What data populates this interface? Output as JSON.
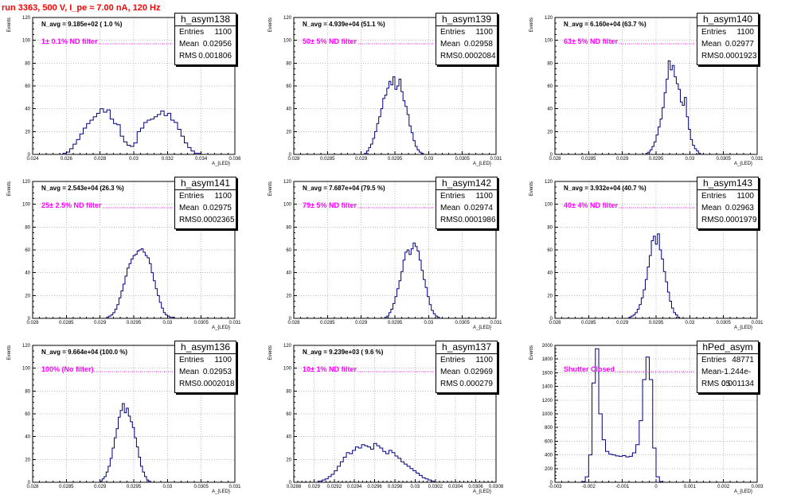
{
  "run_title": "run 3363,   500 V, I_pe ≈ 7.00 nA, 120 Hz",
  "stat_labels": {
    "entries": "Entries",
    "mean": "Mean",
    "rms": "RMS"
  },
  "y_axis_label": "Events",
  "x_axis_label": "A_{LED}",
  "chart_data": [
    {
      "type": "histogram",
      "title": "h_asym138",
      "navg": "N_avg = 9.185e+02 ( 1.0 %)",
      "filter_label": "1± 0.1% ND filter",
      "stats": {
        "entries": "1100",
        "mean": "0.02956",
        "rms": "0.001806"
      },
      "xlim": [
        0.024,
        0.036
      ],
      "ylim": [
        0,
        120
      ],
      "xticks": [
        0.024,
        0.026,
        0.028,
        0.03,
        0.032,
        0.034,
        0.036
      ],
      "xtick_labels": [
        "0.024",
        "0.026",
        "0.028",
        "0.03",
        "0.032",
        "0.034",
        "0.036"
      ],
      "yticks": [
        0,
        20,
        40,
        60,
        80,
        100,
        120
      ],
      "bin_start": 0.0258,
      "bin_width": 0.0002,
      "values": [
        1,
        2,
        5,
        9,
        13,
        18,
        23,
        27,
        30,
        33,
        36,
        40,
        37,
        39,
        31,
        27,
        26,
        16,
        11,
        8,
        7,
        10,
        20,
        23,
        28,
        30,
        31,
        33,
        35,
        38,
        34,
        36,
        30,
        28,
        22,
        16,
        10,
        6,
        3,
        1,
        1
      ]
    },
    {
      "type": "histogram",
      "title": "h_asym139",
      "navg": "N_avg = 4.939e+04 (51.1 %)",
      "filter_label": "50± 5% ND filter",
      "stats": {
        "entries": "1100",
        "mean": "0.02958",
        "rms": "0.0002084"
      },
      "xlim": [
        0.028,
        0.031
      ],
      "ylim": [
        0,
        120
      ],
      "xticks": [
        0.028,
        0.0285,
        0.029,
        0.0295,
        0.03,
        0.0305,
        0.031
      ],
      "xtick_labels": [
        "0.028",
        "0.0285",
        "0.029",
        "0.0295",
        "0.03",
        "0.0305",
        "0.031"
      ],
      "yticks": [
        0,
        20,
        40,
        60,
        80,
        100,
        120
      ],
      "bin_start": 0.02905,
      "bin_width": 3e-05,
      "values": [
        1,
        3,
        6,
        9,
        14,
        20,
        27,
        33,
        40,
        49,
        52,
        58,
        64,
        61,
        68,
        57,
        60,
        66,
        55,
        47,
        42,
        35,
        25,
        19,
        12,
        7,
        4,
        2,
        1
      ]
    },
    {
      "type": "histogram",
      "title": "h_asym140",
      "navg": "N_avg = 6.160e+04 (63.7 %)",
      "filter_label": "63± 5% ND filter",
      "stats": {
        "entries": "1100",
        "mean": "0.02977",
        "rms": "0.0001923"
      },
      "xlim": [
        0.028,
        0.031
      ],
      "ylim": [
        0,
        120
      ],
      "xticks": [
        0.028,
        0.0285,
        0.029,
        0.0295,
        0.03,
        0.0305,
        0.031
      ],
      "xtick_labels": [
        "0.028",
        "0.0285",
        "0.029",
        "0.0295",
        "0.03",
        "0.0305",
        "0.031"
      ],
      "yticks": [
        0,
        20,
        40,
        60,
        80,
        100,
        120
      ],
      "bin_start": 0.02935,
      "bin_width": 3e-05,
      "values": [
        1,
        2,
        4,
        7,
        11,
        17,
        24,
        31,
        41,
        54,
        66,
        82,
        74,
        78,
        68,
        62,
        57,
        46,
        43,
        50,
        33,
        22,
        13,
        8,
        5,
        3,
        1
      ]
    },
    {
      "type": "histogram",
      "title": "h_asym141",
      "navg": "N_avg = 2.543e+04 (26.3 %)",
      "filter_label": "25± 2.5% ND filter",
      "stats": {
        "entries": "1100",
        "mean": "0.02975",
        "rms": "0.0002365"
      },
      "xlim": [
        0.028,
        0.031
      ],
      "ylim": [
        0,
        120
      ],
      "xticks": [
        0.028,
        0.0285,
        0.029,
        0.0295,
        0.03,
        0.0305,
        0.031
      ],
      "xtick_labels": [
        "0.028",
        "0.0285",
        "0.029",
        "0.0295",
        "0.03",
        "0.0305",
        "0.031"
      ],
      "yticks": [
        0,
        20,
        40,
        60,
        80,
        100,
        120
      ],
      "bin_start": 0.0291,
      "bin_width": 3e-05,
      "values": [
        1,
        2,
        3,
        5,
        8,
        12,
        18,
        24,
        30,
        37,
        44,
        48,
        52,
        55,
        56,
        59,
        60,
        61,
        58,
        55,
        53,
        48,
        40,
        33,
        26,
        20,
        14,
        9,
        5,
        3,
        2,
        1,
        1
      ]
    },
    {
      "type": "histogram",
      "title": "h_asym142",
      "navg": "N_avg = 7.687e+04 (79.5 %)",
      "filter_label": "79± 5% ND filter",
      "stats": {
        "entries": "1100",
        "mean": "0.02974",
        "rms": "0.0001986"
      },
      "xlim": [
        0.028,
        0.031
      ],
      "ylim": [
        0,
        120
      ],
      "xticks": [
        0.028,
        0.0285,
        0.029,
        0.0295,
        0.03,
        0.0305,
        0.031
      ],
      "xtick_labels": [
        "0.028",
        "0.0285",
        "0.029",
        "0.0295",
        "0.03",
        "0.0305",
        "0.031"
      ],
      "yticks": [
        0,
        20,
        40,
        60,
        80,
        100,
        120
      ],
      "bin_start": 0.02935,
      "bin_width": 3e-05,
      "values": [
        1,
        2,
        5,
        8,
        13,
        19,
        26,
        33,
        41,
        51,
        58,
        60,
        56,
        61,
        66,
        63,
        59,
        51,
        42,
        34,
        27,
        19,
        12,
        7,
        4,
        2,
        1
      ]
    },
    {
      "type": "histogram",
      "title": "h_asym143",
      "navg": "N_avg = 3.932e+04 (40.7 %)",
      "filter_label": "40± 4% ND filter",
      "stats": {
        "entries": "1100",
        "mean": "0.02963",
        "rms": "0.0001979"
      },
      "xlim": [
        0.028,
        0.031
      ],
      "ylim": [
        0,
        120
      ],
      "xticks": [
        0.028,
        0.0285,
        0.029,
        0.0295,
        0.03,
        0.0305,
        0.031
      ],
      "xtick_labels": [
        "0.028",
        "0.0285",
        "0.029",
        "0.0295",
        "0.03",
        "0.0305",
        "0.031"
      ],
      "yticks": [
        0,
        20,
        40,
        60,
        80,
        100,
        120
      ],
      "bin_start": 0.0291,
      "bin_width": 3e-05,
      "values": [
        1,
        2,
        3,
        5,
        8,
        12,
        18,
        25,
        34,
        45,
        55,
        68,
        72,
        65,
        74,
        60,
        52,
        41,
        32,
        23,
        15,
        9,
        5,
        3,
        1
      ]
    },
    {
      "type": "histogram",
      "title": "h_asym136",
      "navg": "N_avg = 9.664e+04 (100.0 %)",
      "filter_label": "100% (No filter)",
      "stats": {
        "entries": "1100",
        "mean": "0.02953",
        "rms": "0.0002018"
      },
      "xlim": [
        0.028,
        0.031
      ],
      "ylim": [
        0,
        120
      ],
      "xticks": [
        0.028,
        0.0285,
        0.029,
        0.0295,
        0.03,
        0.0305,
        0.031
      ],
      "xtick_labels": [
        "0.028",
        "0.0285",
        "0.029",
        "0.0295",
        "0.03",
        "0.0305",
        "0.031"
      ],
      "yticks": [
        0,
        20,
        40,
        60,
        80,
        100,
        120
      ],
      "bin_start": 0.029,
      "bin_width": 3e-05,
      "values": [
        1,
        3,
        5,
        9,
        14,
        21,
        30,
        39,
        47,
        57,
        63,
        69,
        61,
        65,
        58,
        53,
        48,
        39,
        31,
        22,
        14,
        9,
        5,
        2,
        1
      ]
    },
    {
      "type": "histogram",
      "title": "h_asym137",
      "navg": "N_avg = 9.239e+03 ( 9.6 %)",
      "filter_label": "10± 1% ND filter",
      "stats": {
        "entries": "1100",
        "mean": "0.02969",
        "rms": "0.000279"
      },
      "xlim": [
        0.0288,
        0.0308
      ],
      "ylim": [
        0,
        120
      ],
      "xticks": [
        0.0288,
        0.029,
        0.0292,
        0.0294,
        0.0296,
        0.0298,
        0.03,
        0.0302,
        0.0304,
        0.0306,
        0.0308
      ],
      "xtick_labels": [
        "0.0288",
        "0.029",
        "0.0292",
        "0.0294",
        "0.0296",
        "0.0298",
        "0.03",
        "0.0302",
        "0.0304",
        "0.0306",
        "0.0308"
      ],
      "yticks": [
        0,
        20,
        40,
        60,
        80,
        100,
        120
      ],
      "bin_start": 0.02905,
      "bin_width": 3e-05,
      "values": [
        1,
        2,
        3,
        5,
        7,
        10,
        14,
        18,
        22,
        26,
        25,
        28,
        31,
        30,
        33,
        32,
        31,
        29,
        34,
        32,
        30,
        27,
        25,
        28,
        26,
        23,
        21,
        18,
        16,
        14,
        12,
        10,
        8,
        6,
        4,
        3,
        2,
        1
      ]
    },
    {
      "type": "histogram",
      "title": "hPed_asym",
      "navg": "",
      "filter_label": "Shutter Closed",
      "stats": {
        "entries": "48771",
        "mean": "-1.244e-05",
        "rms": "0.001134"
      },
      "xlim": [
        -0.003,
        0.003
      ],
      "ylim": [
        0,
        2000
      ],
      "xticks": [
        -0.003,
        -0.002,
        -0.001,
        0,
        0.001,
        0.002,
        0.003
      ],
      "xtick_labels": [
        "-0.003",
        "-0.002",
        "-0.001",
        "0",
        "0.001",
        "0.002",
        "0.003"
      ],
      "yticks": [
        0,
        200,
        400,
        600,
        800,
        1000,
        1200,
        1400,
        1600,
        1800,
        2000
      ],
      "bin_start": -0.0022,
      "bin_width": 0.0001,
      "values": [
        10,
        80,
        400,
        1450,
        1950,
        1000,
        620,
        450,
        410,
        400,
        385,
        380,
        390,
        370,
        380,
        430,
        550,
        900,
        1500,
        1830,
        1500,
        500,
        80,
        10
      ]
    }
  ]
}
